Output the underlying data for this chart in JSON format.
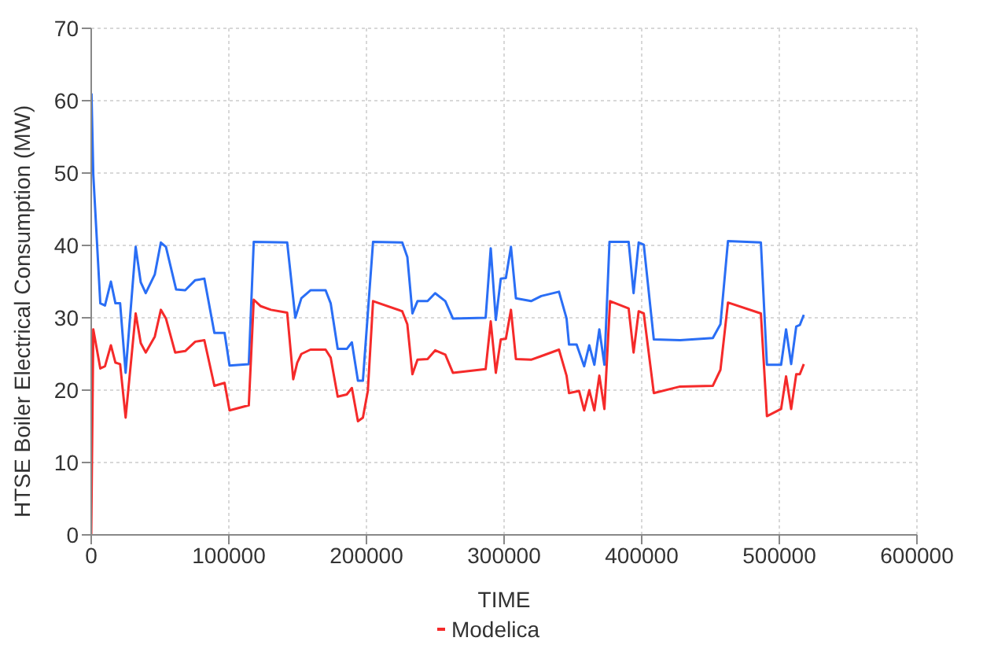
{
  "chart_data": {
    "type": "line",
    "xlabel": "TIME",
    "ylabel": "HTSE Boiler Electrical Consumption (MW)",
    "xlim": [
      0,
      600000
    ],
    "xticks": [
      0,
      100000,
      200000,
      300000,
      400000,
      500000,
      600000
    ],
    "ylim": [
      0,
      70
    ],
    "yticks": [
      0,
      10,
      20,
      30,
      40,
      50,
      60,
      70
    ],
    "grid": true,
    "legend": "bottom",
    "marker": "none",
    "line_style": "solid",
    "series": [
      {
        "color": "#2a6ef5",
        "x": [
          200,
          1500,
          6600,
          10000,
          14300,
          17600,
          21000,
          25000,
          32300,
          36000,
          39600,
          46200,
          50600,
          54300,
          61700,
          68300,
          75600,
          82200,
          89500,
          96900,
          100500,
          114500,
          118100,
          142400,
          148300,
          152700,
          159300,
          170300,
          174000,
          179100,
          185700,
          189400,
          193800,
          197400,
          204800,
          226000,
          229700,
          233400,
          237100,
          244400,
          249900,
          257300,
          262800,
          286600,
          290300,
          294000,
          297600,
          301300,
          305000,
          308600,
          319600,
          327000,
          339900,
          345400,
          347200,
          352700,
          358200,
          361900,
          365600,
          369200,
          372900,
          376600,
          390500,
          394100,
          397800,
          401500,
          408800,
          427900,
          451700,
          457200,
          462700,
          486600,
          491000,
          501300,
          504900,
          508600,
          512300,
          514900,
          517800
        ],
        "values": [
          61,
          49.8,
          32,
          31.7,
          35,
          32,
          32,
          22.4,
          39.8,
          34.9,
          33.4,
          36,
          40.4,
          39.8,
          33.9,
          33.8,
          35.2,
          35.4,
          27.9,
          27.9,
          23.4,
          23.6,
          40.5,
          40.4,
          30,
          32.7,
          33.8,
          33.8,
          32,
          25.7,
          25.7,
          26.6,
          21.3,
          21.3,
          40.5,
          40.4,
          38.4,
          30.6,
          32.3,
          32.3,
          33.4,
          32.3,
          29.9,
          30,
          39.6,
          29.7,
          35.4,
          35.5,
          39.8,
          32.7,
          32.3,
          33,
          33.6,
          29.9,
          26.3,
          26.3,
          23.3,
          26.2,
          23.5,
          28.4,
          23.5,
          40.5,
          40.5,
          33.4,
          40.4,
          40.1,
          27,
          26.9,
          27.2,
          29.1,
          40.6,
          40.4,
          23.5,
          23.5,
          28.4,
          23.6,
          28.8,
          29,
          30.4
        ]
      },
      {
        "name": "Modelica",
        "color": "#f52a2a",
        "x": [
          0,
          1500,
          6600,
          10000,
          14300,
          17600,
          21000,
          25000,
          32300,
          36000,
          39600,
          46200,
          50600,
          54300,
          61000,
          68300,
          75600,
          82200,
          89500,
          96900,
          100500,
          114500,
          118100,
          123200,
          130600,
          142400,
          146800,
          149700,
          152700,
          159300,
          170300,
          174000,
          179100,
          185700,
          189400,
          193800,
          197400,
          201000,
          204800,
          226000,
          229700,
          233400,
          237100,
          244400,
          249900,
          257300,
          262800,
          286600,
          290300,
          294000,
          297600,
          301300,
          305000,
          308600,
          319600,
          327000,
          339900,
          345400,
          347200,
          354500,
          358200,
          361900,
          365600,
          369200,
          372900,
          377000,
          390500,
          394100,
          397800,
          401500,
          408800,
          427900,
          451700,
          457200,
          462700,
          486600,
          491000,
          501300,
          504900,
          508600,
          512300,
          514900,
          517800
        ],
        "values": [
          0,
          28.4,
          23,
          23.3,
          26.2,
          23.8,
          23.6,
          16.2,
          30.6,
          26.5,
          25.2,
          27.4,
          31.1,
          29.9,
          25.2,
          25.4,
          26.7,
          26.9,
          20.6,
          21,
          17.2,
          17.9,
          32.5,
          31.6,
          31.1,
          30.7,
          21.5,
          23.8,
          25,
          25.6,
          25.6,
          24.5,
          19.1,
          19.4,
          20.3,
          15.7,
          16.2,
          19.9,
          32.3,
          30.9,
          29.1,
          22.2,
          24.2,
          24.3,
          25.5,
          24.9,
          22.4,
          22.9,
          29.5,
          22.4,
          27,
          27.1,
          31.1,
          24.3,
          24.2,
          24.7,
          25.6,
          22,
          19.6,
          19.9,
          17.2,
          20,
          17.2,
          22,
          17.4,
          32.3,
          31.3,
          25.2,
          30.9,
          30.6,
          19.6,
          20.5,
          20.6,
          22.8,
          32.1,
          30.6,
          16.4,
          17.4,
          21.9,
          17.4,
          22.2,
          22.2,
          23.6
        ]
      }
    ]
  }
}
